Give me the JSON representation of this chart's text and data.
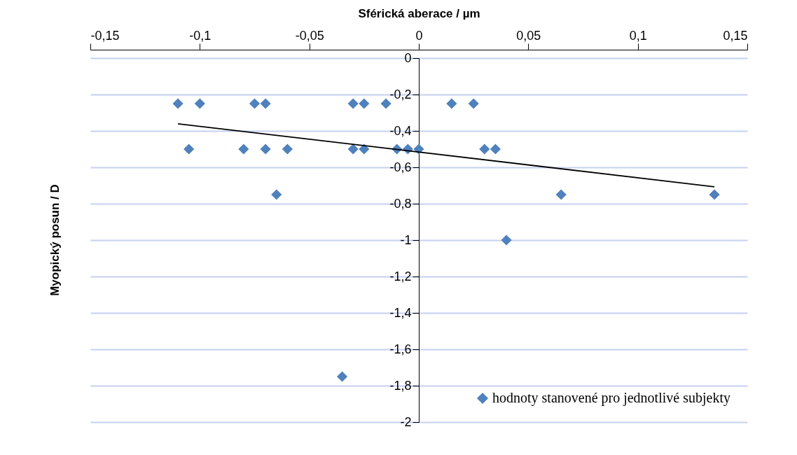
{
  "chart_data": {
    "type": "scatter",
    "xlabel": "Sférická aberace / µm",
    "ylabel": "Myopický posun / D",
    "xlim": [
      -0.15,
      0.15
    ],
    "xticks": [
      {
        "value": -0.15,
        "label": "-0,15"
      },
      {
        "value": -0.1,
        "label": "-0,1"
      },
      {
        "value": -0.05,
        "label": "-0,05"
      },
      {
        "value": 0,
        "label": "0"
      },
      {
        "value": 0.05,
        "label": "0,05"
      },
      {
        "value": 0.1,
        "label": "0,1"
      },
      {
        "value": 0.15,
        "label": "0,15"
      }
    ],
    "ylim": [
      -2,
      0
    ],
    "yticks": [
      {
        "value": -2,
        "label": "-2"
      },
      {
        "value": -1.8,
        "label": "-1,8"
      },
      {
        "value": -1.6,
        "label": "-1,6"
      },
      {
        "value": -1.4,
        "label": "-1,4"
      },
      {
        "value": -1.2,
        "label": "-1,2"
      },
      {
        "value": -1,
        "label": "-1"
      },
      {
        "value": -0.8,
        "label": "-0,8"
      },
      {
        "value": -0.6,
        "label": "-0,6"
      },
      {
        "value": -0.4,
        "label": "-0,4"
      },
      {
        "value": -0.2,
        "label": "-0,2"
      },
      {
        "value": 0,
        "label": "0"
      }
    ],
    "grid": "y",
    "legend": "bottom right",
    "series": [
      {
        "name": "hodnoty stanovené pro jednotlivé subjekty",
        "marker": "diamond",
        "color": "#4f81bd",
        "x": [
          -0.11,
          -0.1,
          -0.075,
          -0.07,
          -0.03,
          -0.025,
          -0.015,
          0.015,
          0.025,
          -0.105,
          -0.08,
          -0.07,
          -0.06,
          -0.03,
          -0.025,
          -0.01,
          -0.005,
          0,
          0.03,
          0.035,
          -0.065,
          0.065,
          0.135,
          0.04,
          -0.035
        ],
        "values": [
          -0.25,
          -0.25,
          -0.25,
          -0.25,
          -0.25,
          -0.25,
          -0.25,
          -0.25,
          -0.25,
          -0.5,
          -0.5,
          -0.5,
          -0.5,
          -0.5,
          -0.5,
          -0.5,
          -0.5,
          -0.5,
          -0.5,
          -0.5,
          -0.75,
          -0.75,
          -0.75,
          -1,
          -1.75
        ]
      },
      {
        "type": "line",
        "color": "#000000",
        "x": [
          -0.11,
          0.135
        ],
        "values": [
          -0.361,
          -0.707
        ]
      }
    ]
  }
}
